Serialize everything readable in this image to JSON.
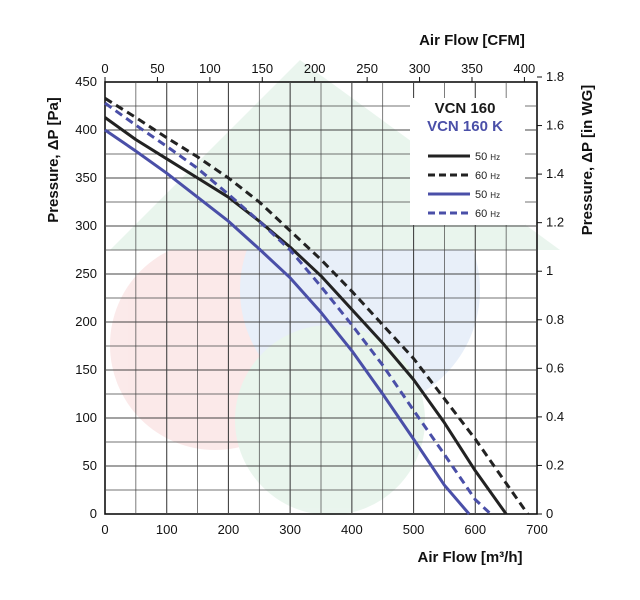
{
  "chart_data": {
    "type": "line",
    "xlabel_bottom": "Air Flow [m³/h]",
    "xlabel_top": "Air Flow [CFM]",
    "ylabel_left": "Pressure, ΔP [Pa]",
    "ylabel_right": "Pressure, ΔP [in WG]",
    "xlim": [
      0,
      700
    ],
    "ylim": [
      0,
      450
    ],
    "x_ticks": [
      0,
      100,
      200,
      300,
      400,
      500,
      600,
      700
    ],
    "y_ticks": [
      0,
      50,
      100,
      150,
      200,
      250,
      300,
      350,
      400,
      450
    ],
    "top_ticks": [
      "0",
      "50",
      "100",
      "150",
      "200",
      "250",
      "300",
      "350",
      "400"
    ],
    "right_ticks": [
      "0",
      "0.2",
      "0.4",
      "0.6",
      "0.8",
      "1",
      "1.2",
      "1.4",
      "1.6",
      "1.8"
    ],
    "grid": true,
    "legend_position": "top-right",
    "legend_groups": [
      {
        "title": "VCN 160",
        "color": "#1a1a1a"
      },
      {
        "title": "VCN 160 K",
        "color": "#4a4fa8"
      }
    ],
    "series": [
      {
        "name": "50 Hz",
        "group": "VCN 160",
        "color": "#222222",
        "dashed": false,
        "x": [
          0,
          50,
          100,
          150,
          200,
          250,
          300,
          350,
          400,
          450,
          500,
          550,
          600,
          650
        ],
        "y": [
          413,
          390,
          370,
          350,
          330,
          305,
          278,
          248,
          213,
          178,
          140,
          95,
          45,
          0
        ]
      },
      {
        "name": "60 Hz",
        "group": "VCN 160",
        "color": "#222222",
        "dashed": true,
        "x": [
          0,
          50,
          100,
          150,
          200,
          250,
          300,
          350,
          400,
          450,
          500,
          550,
          600,
          650,
          685
        ],
        "y": [
          433,
          413,
          392,
          372,
          350,
          325,
          295,
          265,
          232,
          197,
          162,
          120,
          78,
          32,
          0
        ]
      },
      {
        "name": "50 Hz",
        "group": "VCN 160 K",
        "color": "#4a4fa8",
        "dashed": false,
        "x": [
          0,
          50,
          100,
          150,
          200,
          250,
          300,
          350,
          400,
          450,
          500,
          550,
          590
        ],
        "y": [
          400,
          378,
          355,
          330,
          305,
          276,
          246,
          210,
          170,
          125,
          78,
          30,
          0
        ]
      },
      {
        "name": "60 Hz",
        "group": "VCN 160 K",
        "color": "#4a4fa8",
        "dashed": true,
        "x": [
          0,
          50,
          100,
          150,
          200,
          250,
          300,
          350,
          400,
          450,
          500,
          550,
          600,
          625
        ],
        "y": [
          428,
          405,
          383,
          360,
          333,
          305,
          275,
          237,
          197,
          155,
          108,
          62,
          15,
          0
        ]
      }
    ]
  }
}
